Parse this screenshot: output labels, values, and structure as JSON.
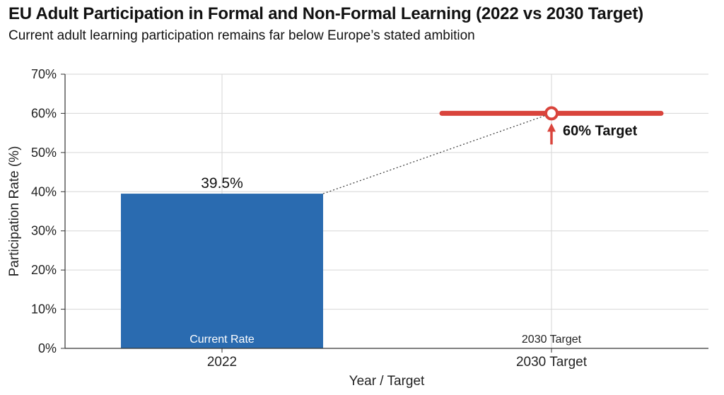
{
  "title": "EU Adult Participation in Formal and Non-Formal Learning (2022 vs 2030 Target)",
  "subtitle": "Current adult learning participation remains far below Europe’s stated ambition",
  "chart_data": {
    "type": "bar",
    "categories": [
      "2022",
      "2030 Target"
    ],
    "values": [
      39.5,
      60
    ],
    "bar_labels": [
      "Current Rate",
      "2030 Target"
    ],
    "value_label": "39.5%",
    "target": {
      "value": 60,
      "label": "60% Target"
    },
    "xlabel": "Year / Target",
    "ylabel": "Participation Rate (%)",
    "ylim": [
      0,
      70
    ],
    "yticks": [
      0,
      10,
      20,
      30,
      40,
      50,
      60,
      70
    ],
    "ytick_labels": [
      "0%",
      "10%",
      "20%",
      "30%",
      "40%",
      "50%",
      "60%",
      "70%"
    ],
    "grid": true,
    "colors": {
      "bar": "#2a6bb0",
      "target": "#d9443c",
      "grid": "#d6d6d6",
      "connector": "#444444"
    }
  }
}
